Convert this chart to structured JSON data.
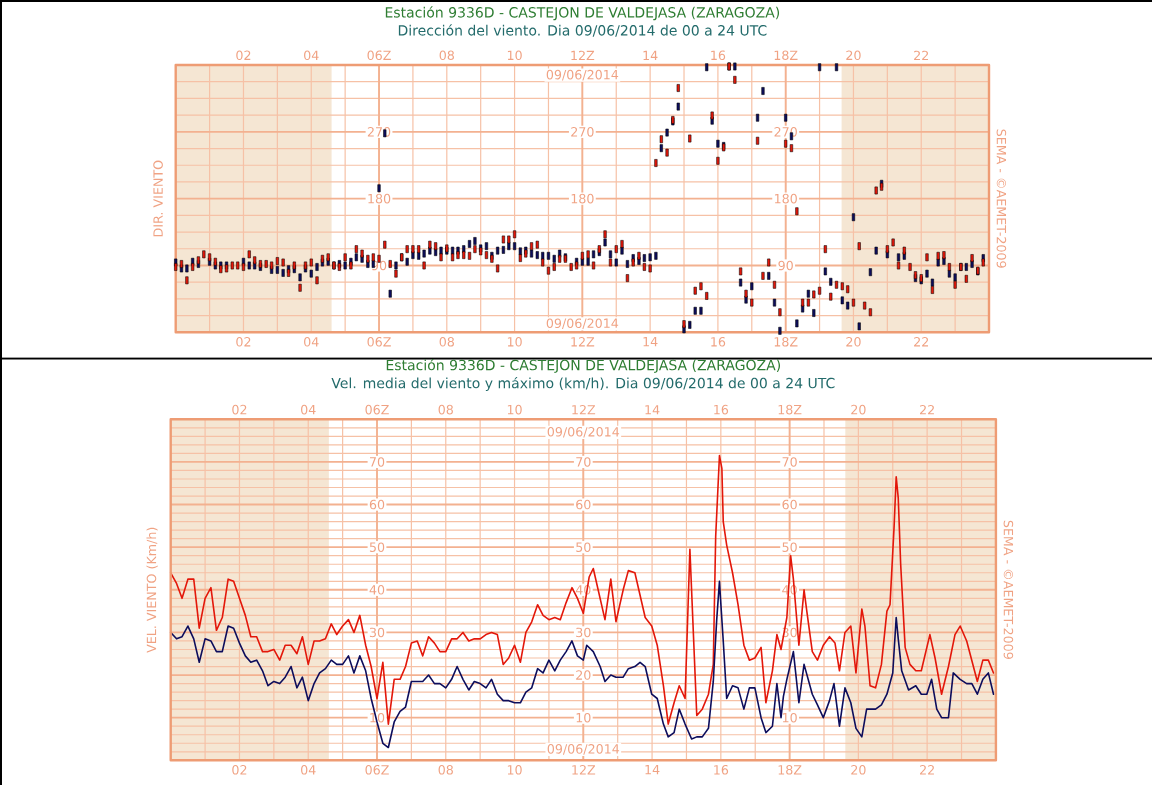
{
  "chart_data": [
    {
      "type": "scatter",
      "title": "Estación 9336D - CASTEJON DE VALDEJASA (ZARAGOZA)",
      "subtitle": "Dirección del viento. Dia 09/06/2014 de 00 a 24 UTC",
      "ylabel": "DIR. VIENTO",
      "annotations": [
        "09/06/2014",
        "09/06/2014",
        "SEMA - ©AEMET-2009"
      ],
      "x": [
        0,
        0.17,
        0.33,
        0.5,
        0.67,
        0.83,
        1,
        1.17,
        1.33,
        1.5,
        1.67,
        1.83,
        2,
        2.17,
        2.33,
        2.5,
        2.67,
        2.83,
        3,
        3.17,
        3.33,
        3.5,
        3.67,
        3.83,
        4,
        4.17,
        4.33,
        4.5,
        4.67,
        4.83,
        5,
        5.17,
        5.33,
        5.5,
        5.67,
        5.83,
        6,
        6.17,
        6.33,
        6.5,
        6.67,
        6.83,
        7,
        7.17,
        7.33,
        7.5,
        7.67,
        7.83,
        8,
        8.17,
        8.33,
        8.5,
        8.67,
        8.83,
        9,
        9.17,
        9.33,
        9.5,
        9.67,
        9.83,
        10,
        10.17,
        10.33,
        10.5,
        10.67,
        10.83,
        11,
        11.17,
        11.33,
        11.5,
        11.67,
        11.83,
        12,
        12.17,
        12.33,
        12.5,
        12.67,
        12.83,
        13,
        13.17,
        13.33,
        13.5,
        13.67,
        13.83,
        14,
        14.17,
        14.33,
        14.5,
        14.67,
        14.83,
        15,
        15.17,
        15.33,
        15.5,
        15.67,
        15.83,
        16,
        16.17,
        16.33,
        16.5,
        16.67,
        16.83,
        17,
        17.17,
        17.33,
        17.5,
        17.67,
        17.83,
        18,
        18.17,
        18.33,
        18.5,
        18.67,
        18.83,
        19,
        19.17,
        19.33,
        19.5,
        19.67,
        19.83,
        20,
        20.17,
        20.33,
        20.5,
        20.67,
        20.83,
        21,
        21.17,
        21.33,
        21.5,
        21.67,
        21.83,
        22,
        22.17,
        22.33,
        22.5,
        22.67,
        22.83,
        23,
        23.17,
        23.33,
        23.5,
        23.67,
        23.83
      ],
      "series": [
        {
          "color": "#0d0d5c",
          "values": [
            94,
            86,
            86,
            95,
            92,
            null,
            95,
            90,
            90,
            90,
            null,
            null,
            95,
            90,
            90,
            88,
            null,
            84,
            84,
            80,
            85,
            85,
            74,
            86,
            79,
            88,
            94,
            95,
            90,
            92,
            90,
            95,
            101,
            99,
            92,
            92,
            194,
            268,
            52,
            90,
            101,
            95,
            104,
            103,
            106,
            110,
            108,
            110,
            110,
            110,
            110,
            112,
            119,
            123,
            113,
            116,
            103,
            110,
            111,
            116,
            116,
            109,
            110,
            106,
            104,
            103,
            103,
            99,
            106,
            101,
            null,
            95,
            95,
            95,
            105,
            108,
            121,
            105,
            94,
            110,
            92,
            100,
            96,
            100,
            101,
            103,
            248,
            269,
            284,
            304,
            4,
            10,
            29,
            29,
            357,
            285,
            254,
            251,
            358,
            358,
            67,
            44,
            62,
            289,
            325,
            76,
            40,
            2,
            289,
            264,
            12,
            32,
            52,
            26,
            357,
            82,
            68,
            357,
            43,
            36,
            155,
            8,
            null,
            81,
            110,
            200,
            105,
            null,
            101,
            103,
            null,
            73,
            70,
            79,
            67,
            94,
            96,
            79,
            74,
            88,
            88,
            92,
            82,
            100
          ]
        },
        {
          "color": "#e3170a",
          "values": [
            88,
            92,
            70,
            88,
            97,
            105,
            101,
            95,
            85,
            86,
            90,
            90,
            88,
            105,
            97,
            92,
            92,
            90,
            96,
            94,
            80,
            90,
            60,
            90,
            94,
            70,
            99,
            101,
            90,
            88,
            101,
            90,
            112,
            106,
            99,
            101,
            99,
            118,
            92,
            79,
            101,
            112,
            112,
            112,
            90,
            118,
            116,
            101,
            113,
            101,
            104,
            104,
            103,
            112,
            109,
            104,
            99,
            86,
            125,
            125,
            132,
            100,
            106,
            116,
            118,
            94,
            83,
            88,
            99,
            99,
            88,
            90,
            103,
            105,
            90,
            112,
            132,
            94,
            112,
            119,
            73,
            94,
            103,
            88,
            86,
            228,
            260,
            242,
            286,
            329,
            11,
            261,
            56,
            62,
            49,
            292,
            231,
            249,
            358,
            340,
            82,
            52,
            40,
            258,
            76,
            94,
            64,
            27,
            254,
            248,
            163,
            40,
            40,
            51,
            56,
            112,
            48,
            64,
            62,
            58,
            40,
            116,
            36,
            27,
            191,
            196,
            112,
            121,
            90,
            110,
            88,
            77,
            73,
            101,
            57,
            103,
            104,
            88,
            64,
            88,
            72,
            100,
            83,
            94
          ]
        }
      ],
      "xlim": [
        0,
        24
      ],
      "xticks": [
        {
          "value": 1,
          "label": null
        },
        {
          "value": 2,
          "label": "02"
        },
        {
          "value": 3,
          "label": null
        },
        {
          "value": 4,
          "label": "04"
        },
        {
          "value": 5,
          "label": null
        },
        {
          "value": 6,
          "label": "06Z"
        },
        {
          "value": 7,
          "label": null
        },
        {
          "value": 8,
          "label": "08"
        },
        {
          "value": 9,
          "label": null
        },
        10,
        {
          "value": 11,
          "label": null
        },
        {
          "value": 12,
          "label": "12Z"
        },
        {
          "value": 13,
          "label": null
        },
        14,
        {
          "value": 15,
          "label": null
        },
        16,
        {
          "value": 17,
          "label": null
        },
        {
          "value": 18,
          "label": "18Z"
        },
        {
          "value": 19,
          "label": null
        },
        20,
        {
          "value": 21,
          "label": null
        },
        22,
        {
          "value": 23,
          "label": null
        }
      ],
      "x2lim": [
        0,
        24
      ],
      "x2ticks": [
        {
          "value": 2,
          "label": "02"
        },
        {
          "value": 4,
          "label": "04"
        },
        {
          "value": 6,
          "label": "06Z"
        },
        {
          "value": 8,
          "label": "08"
        },
        10,
        {
          "value": 12,
          "label": "12Z"
        },
        14,
        16,
        {
          "value": 18,
          "label": "18Z"
        },
        20,
        22
      ],
      "ylim": [
        0,
        360
      ],
      "yticks": [
        {
          "value": 22.5,
          "label": null
        },
        {
          "value": 45,
          "label": null
        },
        {
          "value": 67.5,
          "label": null
        },
        90,
        {
          "value": 112.5,
          "label": null
        },
        {
          "value": 135,
          "label": null
        },
        {
          "value": 157.5,
          "label": null
        },
        180,
        {
          "value": 202.5,
          "label": null
        },
        {
          "value": 225,
          "label": null
        },
        {
          "value": 247.5,
          "label": null
        },
        270,
        {
          "value": 292.5,
          "label": null
        },
        {
          "value": 315,
          "label": null
        },
        {
          "value": 337.5,
          "label": null
        }
      ],
      "y2lim": [
        0,
        360
      ],
      "y2ticks": [
        180,
        270
      ],
      "y3lim": [
        0,
        360
      ],
      "y3ticks": [
        90,
        180,
        270
      ],
      "bands": [
        {
          "axis": "x",
          "from": 0,
          "to": 4.6,
          "color": "#f5e6d3"
        },
        {
          "axis": "x",
          "from": 19.65,
          "to": 24,
          "color": "#f5e6d3"
        }
      ],
      "grid": true,
      "marker": "square"
    },
    {
      "type": "line",
      "title": "Estación 9336D - CASTEJON DE VALDEJASA (ZARAGOZA)",
      "subtitle": "Vel. media del viento y máximo (km/h). Dia 09/06/2014 de 00 a 24 UTC",
      "ylabel": "VEL. VIENTO (Km/h)",
      "annotations": [
        "09/06/2014",
        "09/06/2014",
        "SEMA - ©AEMET-2009"
      ],
      "series": [
        {
          "color": "#e3170a",
          "x": [
            0,
            0.17,
            0.33,
            0.5,
            0.67,
            0.83,
            1,
            1.17,
            1.33,
            1.5,
            1.67,
            1.83,
            2,
            2.17,
            2.33,
            2.5,
            2.67,
            2.83,
            3,
            3.17,
            3.33,
            3.5,
            3.67,
            3.83,
            4,
            4.17,
            4.33,
            4.5,
            4.67,
            4.83,
            5,
            5.17,
            5.33,
            5.5,
            5.67,
            5.83,
            6,
            6.17,
            6.33,
            6.5,
            6.67,
            6.83,
            7,
            7.17,
            7.33,
            7.5,
            7.67,
            7.83,
            8,
            8.17,
            8.33,
            8.5,
            8.67,
            8.83,
            9,
            9.17,
            9.33,
            9.5,
            9.67,
            9.83,
            10,
            10.17,
            10.33,
            10.5,
            10.67,
            10.83,
            11,
            11.17,
            11.33,
            11.5,
            11.67,
            11.83,
            12,
            12.17,
            12.29,
            12.63,
            12.8,
            12.95,
            13.16,
            13.31,
            13.5,
            13.8,
            13.99,
            14.15,
            14.33,
            14.47,
            14.64,
            14.79,
            14.96,
            15.1,
            15.3,
            15.46,
            15.64,
            15.78,
            15.85,
            15.96,
            16.03,
            16.07,
            16.17,
            16.34,
            16.5,
            16.67,
            16.83,
            16.99,
            17.17,
            17.31,
            17.5,
            17.63,
            17.75,
            17.92,
            18.03,
            18.11,
            18.27,
            18.42,
            18.5,
            18.66,
            18.81,
            18.98,
            19.16,
            19.32,
            19.45,
            19.61,
            19.78,
            19.93,
            20.1,
            20.19,
            20.34,
            20.5,
            20.67,
            20.83,
            20.92,
            21.04,
            21.1,
            21.16,
            21.23,
            21.36,
            21.5,
            21.67,
            21.83,
            22.08,
            22.23,
            22.42,
            22.62,
            22.81,
            22.96,
            23.15,
            23.46,
            23.62,
            23.78,
            23.93
          ],
          "values": [
            44,
            41.5,
            38,
            42.5,
            42.5,
            31,
            38,
            40.5,
            30.5,
            33.5,
            42.5,
            42,
            38,
            34,
            29,
            29,
            25.5,
            25.5,
            26,
            23.5,
            27,
            27,
            25,
            29,
            22.5,
            28,
            28,
            28.5,
            32,
            29.5,
            31.5,
            33,
            30,
            34,
            27,
            22,
            14.5,
            23,
            8.5,
            19,
            19,
            22,
            27.5,
            28,
            24.5,
            29,
            27.5,
            25.5,
            25.5,
            28.5,
            28.5,
            30,
            28,
            28.5,
            28.5,
            29.5,
            30,
            29.5,
            22.5,
            24,
            27,
            23,
            30,
            32.5,
            36.5,
            34,
            33,
            33.5,
            33,
            37,
            40.5,
            38,
            34.5,
            43,
            45,
            33,
            42.5,
            32.5,
            40,
            44.5,
            44,
            33.5,
            31.5,
            27,
            17.5,
            8.5,
            13.5,
            17.5,
            14.5,
            49.5,
            10.5,
            12,
            15.5,
            22.5,
            52.5,
            71.5,
            68.5,
            56,
            50.5,
            44,
            36.5,
            27,
            23.5,
            24,
            26.5,
            13.5,
            21,
            29.5,
            26,
            33.5,
            48,
            42.5,
            27,
            40,
            35,
            25.5,
            23.5,
            27,
            29,
            27.5,
            21,
            30,
            31.5,
            20.5,
            35.5,
            31.5,
            17.5,
            17,
            22.5,
            35,
            36.5,
            55,
            66.5,
            61.5,
            46,
            26.5,
            22.5,
            21,
            21,
            29.5,
            24,
            15.5,
            22,
            29.5,
            31.5,
            28,
            18.5,
            23.5,
            23.5,
            20.5
          ]
        },
        {
          "color": "#0d0d5c",
          "x": [
            0,
            0.17,
            0.33,
            0.5,
            0.67,
            0.83,
            1,
            1.17,
            1.33,
            1.5,
            1.67,
            1.83,
            2,
            2.17,
            2.33,
            2.5,
            2.67,
            2.83,
            3,
            3.17,
            3.33,
            3.5,
            3.67,
            3.83,
            4,
            4.17,
            4.33,
            4.5,
            4.67,
            4.83,
            5,
            5.17,
            5.33,
            5.5,
            5.67,
            5.83,
            6,
            6.17,
            6.33,
            6.5,
            6.67,
            6.83,
            7,
            7.17,
            7.33,
            7.5,
            7.67,
            7.83,
            8,
            8.17,
            8.33,
            8.5,
            8.67,
            8.83,
            9,
            9.17,
            9.33,
            9.5,
            9.67,
            9.83,
            10,
            10.17,
            10.33,
            10.5,
            10.67,
            10.83,
            11,
            11.17,
            11.33,
            11.5,
            11.67,
            11.83,
            12,
            12.1,
            12.29,
            12.49,
            12.63,
            12.8,
            12.95,
            13.16,
            13.31,
            13.5,
            13.65,
            13.8,
            13.99,
            14.15,
            14.33,
            14.47,
            14.64,
            14.79,
            14.96,
            15.15,
            15.3,
            15.46,
            15.64,
            15.78,
            15.88,
            15.96,
            15.99,
            16.07,
            16.17,
            16.34,
            16.5,
            16.67,
            16.83,
            16.99,
            17.17,
            17.31,
            17.5,
            17.63,
            17.75,
            17.82,
            17.92,
            18.11,
            18.27,
            18.42,
            18.66,
            18.81,
            18.98,
            19.16,
            19.29,
            19.45,
            19.61,
            19.78,
            19.93,
            20.1,
            20.24,
            20.5,
            20.67,
            20.83,
            21,
            21.1,
            21.16,
            21.26,
            21.46,
            21.67,
            21.83,
            21.99,
            22.13,
            22.28,
            22.42,
            22.62,
            22.76,
            22.96,
            23.15,
            23.3,
            23.46,
            23.62,
            23.78,
            23.93
          ],
          "values": [
            30,
            28.5,
            29,
            31.5,
            28.5,
            23,
            28.5,
            28,
            25.5,
            25.5,
            31.5,
            31,
            27.5,
            24.5,
            23,
            23.5,
            21,
            17.5,
            18.5,
            18,
            19.5,
            22,
            17,
            19.5,
            14,
            18,
            20.5,
            21.5,
            23.5,
            22.5,
            22.5,
            24.5,
            20.5,
            24.5,
            21,
            14.5,
            9,
            4,
            3,
            9,
            11.5,
            12.5,
            18.5,
            18.5,
            18.5,
            20,
            18,
            18,
            17,
            19,
            22,
            19,
            16.5,
            18.5,
            18,
            17,
            19,
            15.5,
            14,
            14,
            13.5,
            13.5,
            16,
            17,
            21.5,
            20.5,
            23.5,
            21,
            23.5,
            25.5,
            28,
            24.5,
            23.5,
            27,
            25.5,
            22,
            18.5,
            20,
            19.5,
            19.5,
            21.5,
            22,
            23,
            22,
            15.5,
            14.5,
            8.5,
            5.5,
            6.5,
            12,
            8.5,
            5,
            5.5,
            5.5,
            7.5,
            18.5,
            33,
            42,
            38,
            28,
            14.5,
            17.5,
            17,
            12,
            17,
            17,
            10,
            6.5,
            8,
            18,
            10,
            15,
            19,
            25.5,
            13.5,
            22.5,
            15.5,
            13,
            10,
            14,
            18,
            8,
            17,
            13.5,
            7.5,
            5.5,
            12,
            12,
            13,
            15.5,
            20.5,
            33.5,
            28.5,
            21,
            16.5,
            17.5,
            15.5,
            15.5,
            19,
            12,
            10,
            10,
            20.5,
            19,
            18,
            18,
            15.5,
            19,
            20.5,
            15.5
          ]
        }
      ],
      "xlim": [
        0,
        24
      ],
      "xticks": [
        {
          "value": 1,
          "label": null
        },
        {
          "value": 2,
          "label": "02"
        },
        {
          "value": 3,
          "label": null
        },
        {
          "value": 4,
          "label": "04"
        },
        {
          "value": 5,
          "label": null
        },
        {
          "value": 6,
          "label": "06Z"
        },
        {
          "value": 7,
          "label": null
        },
        {
          "value": 8,
          "label": "08"
        },
        {
          "value": 9,
          "label": null
        },
        10,
        {
          "value": 11,
          "label": null
        },
        {
          "value": 12,
          "label": "12Z"
        },
        {
          "value": 13,
          "label": null
        },
        14,
        {
          "value": 15,
          "label": null
        },
        16,
        {
          "value": 17,
          "label": null
        },
        {
          "value": 18,
          "label": "18Z"
        },
        {
          "value": 19,
          "label": null
        },
        20,
        {
          "value": 21,
          "label": null
        },
        22,
        {
          "value": 23,
          "label": null
        }
      ],
      "x2lim": [
        0,
        24
      ],
      "x2ticks": [
        {
          "value": 2,
          "label": "02"
        },
        {
          "value": 4,
          "label": "04"
        },
        {
          "value": 6,
          "label": "06Z"
        },
        {
          "value": 8,
          "label": "08"
        },
        10,
        {
          "value": 12,
          "label": "12Z"
        },
        14,
        16,
        {
          "value": 18,
          "label": "18Z"
        },
        20,
        22
      ],
      "ylim": [
        0,
        80
      ],
      "yticks": [
        {
          "value": 2,
          "label": null
        },
        {
          "value": 4,
          "label": null
        },
        {
          "value": 6,
          "label": null
        },
        {
          "value": 8,
          "label": null
        },
        10,
        {
          "value": 12,
          "label": null
        },
        {
          "value": 14,
          "label": null
        },
        {
          "value": 16,
          "label": null
        },
        {
          "value": 18,
          "label": null
        },
        {
          "value": 20,
          "label": null
        },
        {
          "value": 22,
          "label": null
        },
        {
          "value": 24,
          "label": null
        },
        {
          "value": 26,
          "label": null
        },
        {
          "value": 28,
          "label": null
        },
        30,
        {
          "value": 32,
          "label": null
        },
        {
          "value": 34,
          "label": null
        },
        {
          "value": 36,
          "label": null
        },
        {
          "value": 38,
          "label": null
        },
        40,
        {
          "value": 42,
          "label": null
        },
        {
          "value": 44,
          "label": null
        },
        {
          "value": 46,
          "label": null
        },
        {
          "value": 48,
          "label": null
        },
        50,
        {
          "value": 52,
          "label": null
        },
        {
          "value": 54,
          "label": null
        },
        {
          "value": 56,
          "label": null
        },
        {
          "value": 58,
          "label": null
        },
        60,
        {
          "value": 62,
          "label": null
        },
        {
          "value": 64,
          "label": null
        },
        {
          "value": 66,
          "label": null
        },
        {
          "value": 68,
          "label": null
        },
        70,
        {
          "value": 72,
          "label": null
        },
        {
          "value": 74,
          "label": null
        },
        {
          "value": 76,
          "label": null
        },
        {
          "value": 78,
          "label": null
        }
      ],
      "y2lim": [
        0,
        80
      ],
      "y2ticks": [
        10,
        20,
        30,
        40,
        50,
        60,
        70
      ],
      "y3lim": [
        0,
        80
      ],
      "y3ticks": [
        10,
        30,
        40,
        50,
        60,
        70
      ],
      "bands": [
        {
          "axis": "x",
          "from": 0,
          "to": 4.6,
          "color": "#f5e6d3"
        },
        {
          "axis": "x",
          "from": 19.62,
          "to": 24,
          "color": "#f5e6d3"
        }
      ],
      "grid": true,
      "line_style": "solid"
    }
  ]
}
